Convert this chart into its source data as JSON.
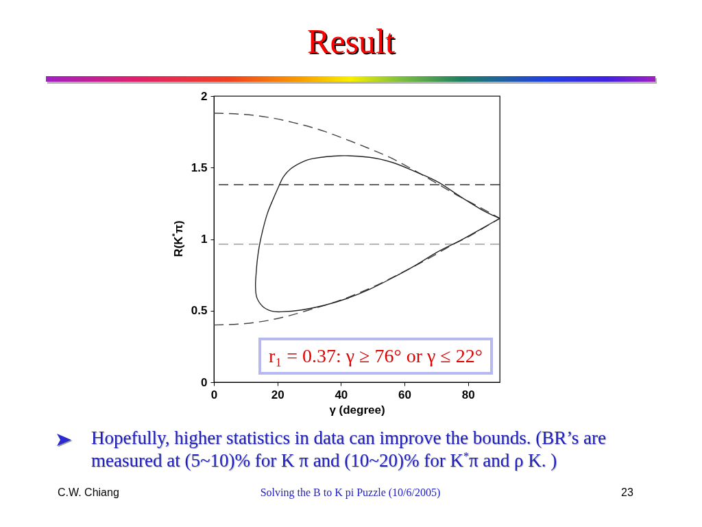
{
  "chart_data": {
    "type": "line",
    "title": "Result",
    "xlabel": "γ (degree)",
    "ylabel": "R(K$^{*}$π)",
    "xlim": [
      0,
      90
    ],
    "ylim": [
      0,
      2
    ],
    "xticks": [
      0,
      20,
      40,
      60,
      80
    ],
    "yticks": [
      0,
      0.5,
      1,
      1.5,
      2
    ],
    "series": [
      {
        "color": "#444444",
        "line_style": "dashed",
        "x": [
          0,
          8,
          17,
          25,
          35,
          42,
          49,
          56,
          63,
          70,
          77,
          81,
          86,
          90
        ],
        "values": [
          1.88,
          1.874,
          1.852,
          1.815,
          1.752,
          1.694,
          1.632,
          1.565,
          1.482,
          1.392,
          1.302,
          1.255,
          1.195,
          1.145
        ]
      },
      {
        "color": "#444444",
        "line_style": "dashed",
        "x": [
          0,
          10,
          20,
          30,
          40,
          50,
          60,
          70,
          75,
          80,
          85,
          90
        ],
        "values": [
          0.4,
          0.41,
          0.445,
          0.505,
          0.575,
          0.665,
          0.775,
          0.895,
          0.96,
          1.015,
          1.08,
          1.145
        ]
      }
    ],
    "ref_lines": [
      {
        "axis": "y",
        "value": 1.38,
        "color": "#333333",
        "line_style": "dashed"
      },
      {
        "axis": "y",
        "value": 0.965,
        "color": "#888888",
        "line_style": "dashed"
      }
    ],
    "annotations": [
      "r₁ = 0.37: γ ≥ 76° or γ ≤ 22°",
      "Hopefully, higher statistics in data can improve the bounds. (BR’s are measured at (5~10)% for K π and (10~20)% for K$^{*}$π and ρ K. )",
      "C.W. Chiang",
      "Solving the B to K pi Puzzle (10/6/2005)",
      "23"
    ]
  }
}
